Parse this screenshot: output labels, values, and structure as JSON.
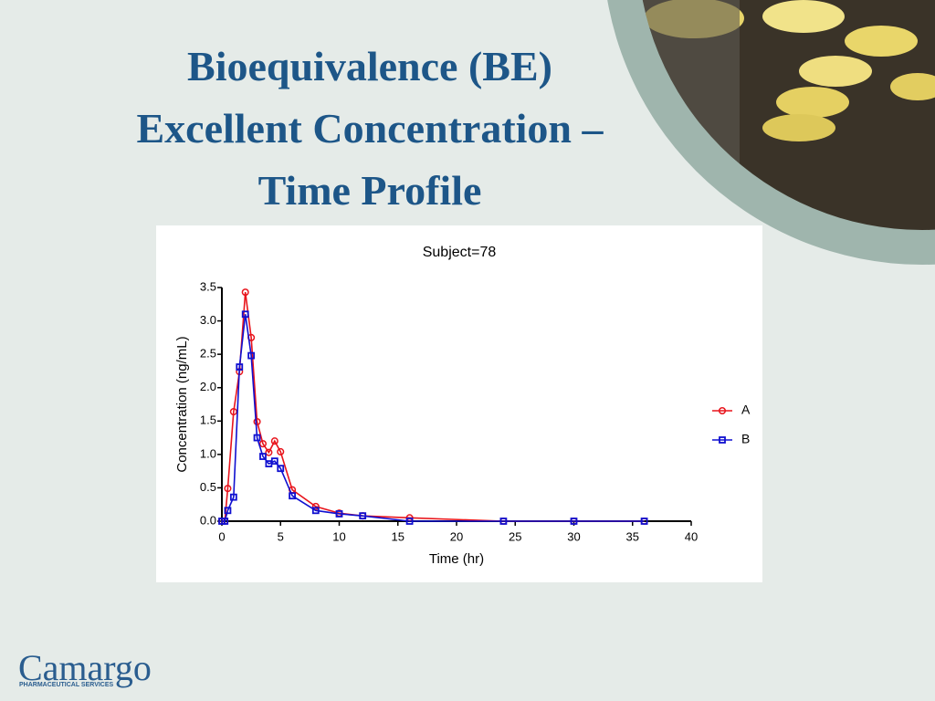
{
  "slide": {
    "title": [
      "Bioequivalence (BE)",
      "Excellent Concentration –",
      "Time Profile"
    ]
  },
  "logo": {
    "name": "Camargo",
    "tagline": "PHARMACEUTICAL SERVICES"
  },
  "chart_data": {
    "type": "line",
    "title": "Subject=78",
    "xlabel": "Time (hr)",
    "ylabel": "Concentration (ng/mL)",
    "x": [
      0,
      0.25,
      0.5,
      1,
      1.5,
      2,
      2.5,
      3,
      3.5,
      4,
      4.5,
      5,
      6,
      8,
      10,
      12,
      16,
      24,
      30,
      36
    ],
    "series": [
      {
        "name": "A",
        "color": "#e8141c",
        "marker": "circle",
        "values": [
          0,
          0,
          0.49,
          1.64,
          2.24,
          3.43,
          2.75,
          1.49,
          1.16,
          1.03,
          1.2,
          1.04,
          0.47,
          0.22,
          0.12,
          0.08,
          0.05,
          0,
          0,
          0
        ]
      },
      {
        "name": "B",
        "color": "#1010d0",
        "marker": "square",
        "values": [
          0,
          0,
          0.16,
          0.36,
          2.31,
          3.1,
          2.48,
          1.25,
          0.97,
          0.86,
          0.9,
          0.79,
          0.38,
          0.16,
          0.11,
          0.08,
          0,
          0,
          0,
          0
        ]
      }
    ],
    "xlim": [
      0,
      40
    ],
    "xticks": [
      0,
      5,
      10,
      15,
      20,
      25,
      30,
      35,
      40
    ],
    "ylim": [
      0,
      3.5
    ],
    "yticks": [
      {
        "value": 0,
        "label": "0.0"
      },
      0.5,
      {
        "value": 1,
        "label": "1.0"
      },
      1.5,
      {
        "value": 2,
        "label": "2.0"
      },
      2.5,
      {
        "value": 3,
        "label": "3.0"
      },
      3.5
    ],
    "legend": "right",
    "grid": false
  }
}
